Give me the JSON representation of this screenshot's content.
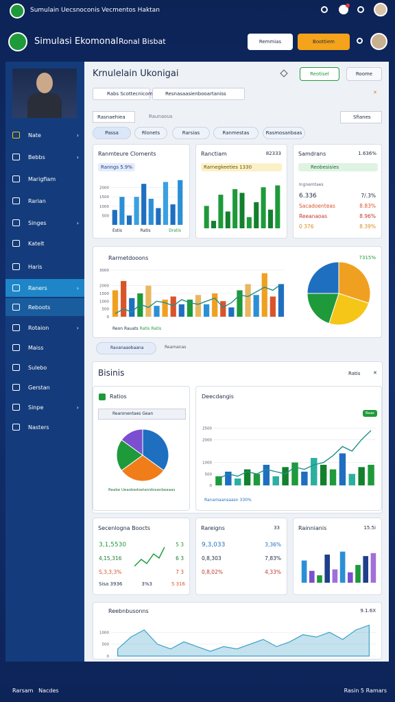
{
  "topbar": {
    "title": "Sumulain Uecsnoconis Vecmentos Haktan"
  },
  "header": {
    "brand": "Simulasi Ekomonal",
    "subtitle": "Ronal Bisbat",
    "button_primary": "Remmias",
    "button_accent": "Boottiem"
  },
  "sidebar": {
    "menu": [
      "Nate",
      "Bebbs",
      "Marigfiam",
      "Rarian",
      "Singes",
      "Katelt",
      "Haris",
      "Raners",
      "Reboots",
      "Rotaion",
      "Maiss",
      "Sulebo",
      "Gerstan",
      "Sinpe",
      "Nasters"
    ]
  },
  "main": {
    "title": "Krnulelain Ukonigai",
    "button": "Reotisel",
    "button2": "Roome",
    "search": "Rabs Scottecnicom",
    "search2": "Resnasaasienbooartaniss",
    "filter": "Rasnaehiea",
    "filter_hint": "Raunaous",
    "sort": "Sfianes",
    "tabs": [
      "Passa",
      "Rlonets",
      "Rarsias",
      "Ranmestas",
      "Rasmosanbaas"
    ]
  },
  "cards": [
    {
      "title": "Ranmteure Cloments",
      "badge": "Ranngs 5.9%",
      "xlabels": [
        "Estis",
        "Ratis",
        "Dratis"
      ],
      "chart": {
        "type": "bar",
        "ylim": [
          0,
          2500
        ],
        "yticks": [
          500,
          1000,
          1500,
          2000
        ],
        "colors": [
          "#1f6fc0",
          "#2b8fd6",
          "#1f6fc0",
          "#3aa0e0"
        ],
        "values": [
          800,
          1500,
          500,
          1500,
          2200,
          1400,
          900,
          2300,
          1100,
          2400
        ]
      }
    },
    {
      "title": "Ranctiam",
      "value": "82333",
      "badge": "Rarnegkeeties 1330",
      "chart": {
        "type": "bar",
        "ylim": [
          0,
          2500
        ],
        "colors": [
          "#1e9a3a",
          "#12802c"
        ],
        "values": [
          1200,
          400,
          1800,
          900,
          2100,
          1900,
          600,
          1400,
          2200,
          1000,
          2300
        ]
      }
    },
    {
      "title": "Samdrans",
      "value": "1.636%",
      "badge": "Reobesisies",
      "sublabel": "Ingnemtaes",
      "rows": [
        [
          "6.336",
          "7/.3%"
        ],
        [
          "Sacadoenteas",
          "8.83%"
        ],
        [
          "Reeanaoas",
          "8.96%"
        ],
        [
          "0 376",
          "8.39%"
        ]
      ]
    },
    {
      "title": "Rarmetdooons",
      "value": "7315%",
      "legend": [
        "Reon Rauats",
        "Ratis",
        "Ratis"
      ],
      "chart": {
        "type": "bar",
        "ylim": [
          0,
          3000
        ],
        "yticks": [
          0,
          500,
          1000,
          1500,
          2000,
          3000
        ],
        "colors": [
          "#f0a020",
          "#d9542a",
          "#1f6fc0",
          "#1e9a3a",
          "#e8b860",
          "#2b8fd6"
        ],
        "values": [
          1700,
          2300,
          1200,
          1500,
          2000,
          700,
          1100,
          1300,
          800,
          1100,
          1400,
          800,
          1500,
          1000,
          600,
          1700,
          2100,
          1400,
          2800,
          1300,
          2100
        ],
        "line": [
          200,
          500,
          300,
          800,
          600,
          1000,
          900,
          700,
          1100,
          900,
          800,
          1000,
          1200,
          600,
          900,
          1400,
          1300,
          1600,
          1900,
          1700,
          2100
        ]
      },
      "pie": {
        "type": "pie",
        "values": [
          30,
          25,
          20,
          25
        ],
        "colors": [
          "#f0a020",
          "#f5c518",
          "#1e9a3a",
          "#1f6fc0"
        ]
      },
      "tabs": [
        "Ravanaaobaana",
        "Reamanas"
      ]
    },
    {
      "title": "Bisinis",
      "action": "Ratis"
    },
    {
      "title": "Ratios",
      "dropdown": "Rearonentaes Gean",
      "footer": "Reabe Ueaobedoetanidosanbeaaas",
      "pie": {
        "type": "pie",
        "values": [
          35,
          30,
          20,
          15
        ],
        "colors": [
          "#1f6fc0",
          "#f07d1a",
          "#1e9a3a",
          "#7b4fd0"
        ]
      }
    },
    {
      "title": "Deecdangis",
      "badge": "Baae",
      "legend": "Ranamaansaasn 330%",
      "chart": {
        "type": "bar",
        "ylim": [
          0,
          3000
        ],
        "yticks": [
          0,
          500,
          1000,
          2000,
          2500
        ],
        "colors": [
          "#1e9a3a",
          "#1f6fc0",
          "#2bb0a0",
          "#12802c"
        ],
        "values": [
          400,
          600,
          300,
          700,
          500,
          900,
          400,
          800,
          1000,
          600,
          1200,
          900,
          700,
          1400,
          500,
          800,
          900
        ],
        "line": [
          300,
          500,
          400,
          600,
          500,
          700,
          600,
          500,
          800,
          700,
          900,
          1000,
          1300,
          1700,
          1500,
          2000,
          2400
        ]
      }
    },
    {
      "title": "Secenlogna Boocts",
      "rows": [
        [
          "3,1,5530",
          "5 3"
        ],
        [
          "4,15,316",
          "6 3"
        ],
        [
          "S,3,3,3%",
          "7 3"
        ]
      ],
      "footer": [
        "Sisa 3936",
        "3%3",
        "5 316"
      ]
    },
    {
      "title": "Rareigns",
      "value": "33",
      "rows": [
        [
          "9,3,033",
          "3,36%"
        ],
        [
          "0,8,303",
          "7,83%"
        ],
        [
          "0,8,02%",
          "4,33%"
        ]
      ]
    },
    {
      "title": "Rainnianis",
      "value": "15.5i",
      "chart": {
        "type": "bar",
        "ylim": [
          0,
          2500
        ],
        "colors": [
          "#2b8fd6",
          "#7b4fd0",
          "#1e9a3a",
          "#1f3f8a",
          "#a070d8"
        ],
        "values": [
          1500,
          800,
          500,
          1900,
          900,
          2100,
          700,
          1200,
          1800,
          2000
        ]
      }
    },
    {
      "title": "Reebnbusonns",
      "value": "9.1.6X",
      "chart": {
        "type": "area",
        "ylim": [
          0,
          1500
        ],
        "yticks": [
          0,
          500,
          1000
        ],
        "color": "#3aa0c8",
        "values": [
          300,
          800,
          1100,
          500,
          300,
          600,
          400,
          200,
          400,
          300,
          500,
          700,
          400,
          600,
          900,
          800,
          1000,
          700,
          1100,
          1300
        ]
      }
    }
  ],
  "footer": {
    "left": [
      "Rarsam",
      "Nacdes"
    ],
    "right": "Rasin 5 Ramars"
  }
}
